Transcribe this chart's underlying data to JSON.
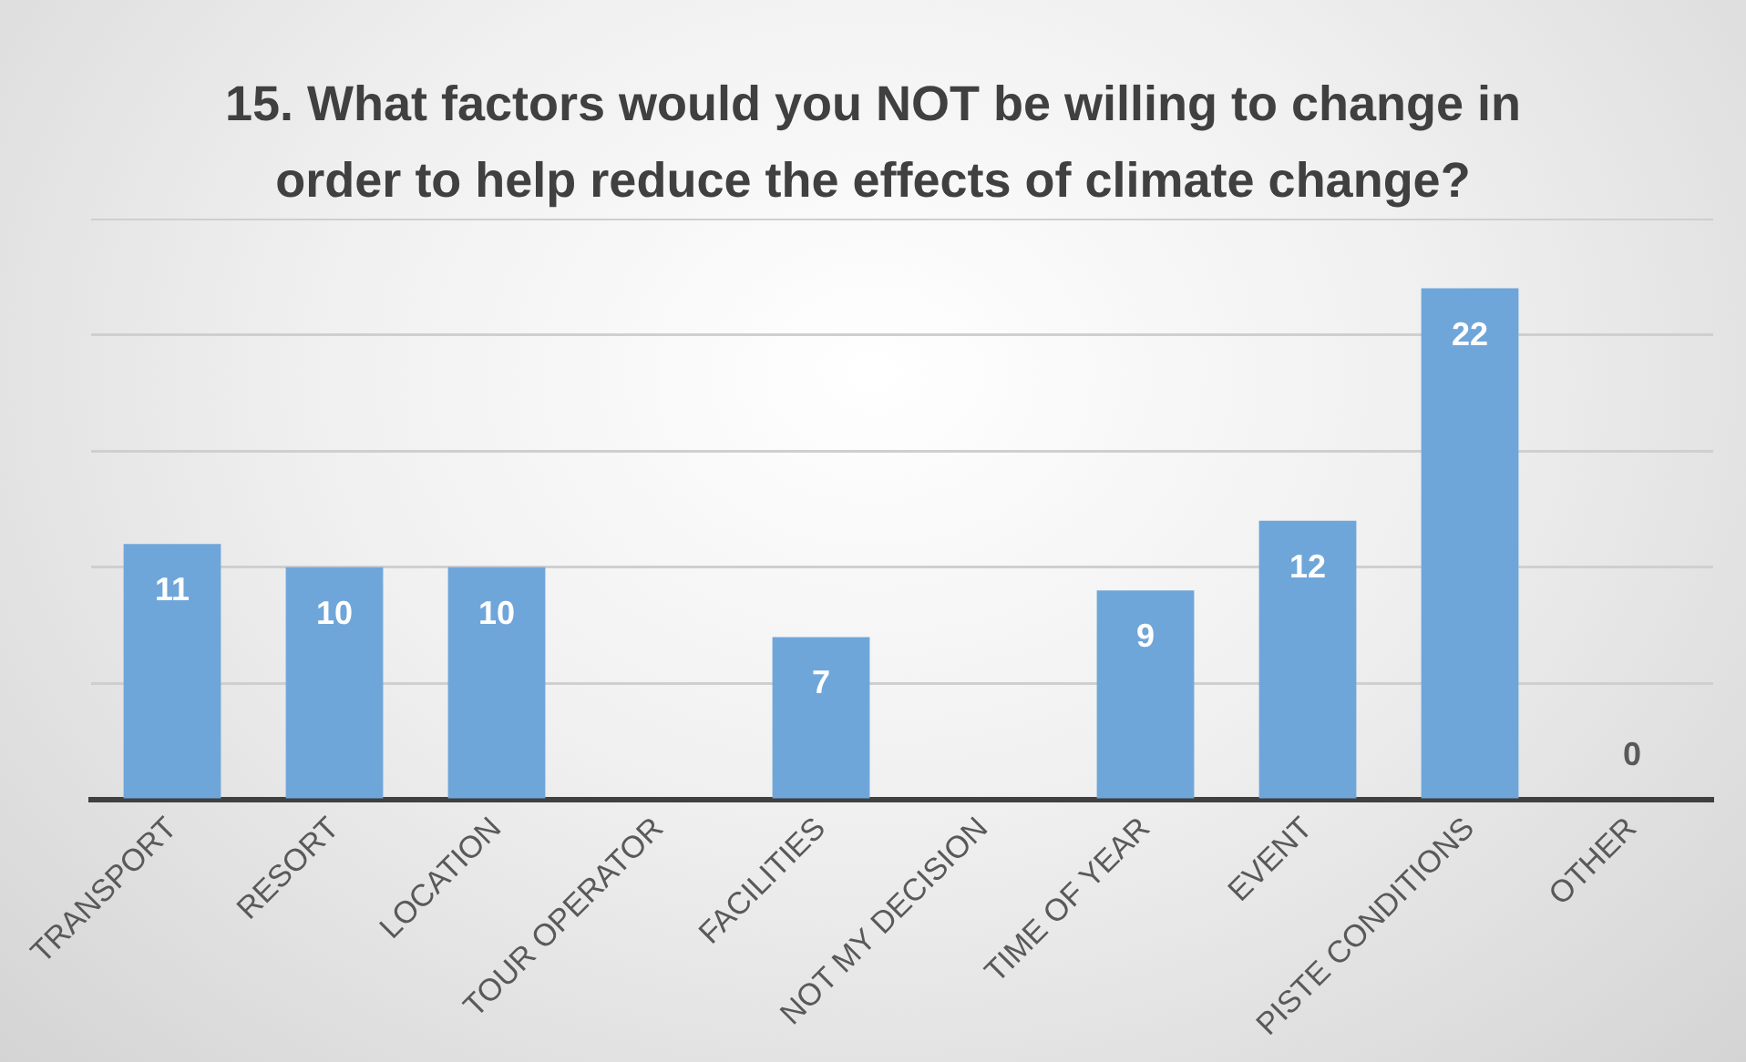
{
  "chart_data": {
    "type": "bar",
    "title": "15. What factors would you NOT be willing to change in order to help reduce the effects of climate change?",
    "categories": [
      "TRANSPORT",
      "RESORT",
      "LOCATION",
      "TOUR OPERATOR",
      "FACILITIES",
      "NOT MY DECISION",
      "TIME OF YEAR",
      "EVENT",
      "PISTE CONDITIONS",
      "OTHER"
    ],
    "values": [
      11,
      10,
      10,
      null,
      7,
      null,
      9,
      12,
      22,
      0
    ],
    "color": "#6fa6da",
    "ylim": [
      0,
      25
    ],
    "yticks": [
      {
        "value": 0,
        "label": null
      },
      {
        "value": 5,
        "label": null
      },
      {
        "value": 10,
        "label": null
      },
      {
        "value": 15,
        "label": null
      },
      {
        "value": 20,
        "label": null
      },
      {
        "value": 25,
        "label": null
      }
    ],
    "grid": "y",
    "tick_labels": "x",
    "data_labels": true,
    "legend": false
  }
}
